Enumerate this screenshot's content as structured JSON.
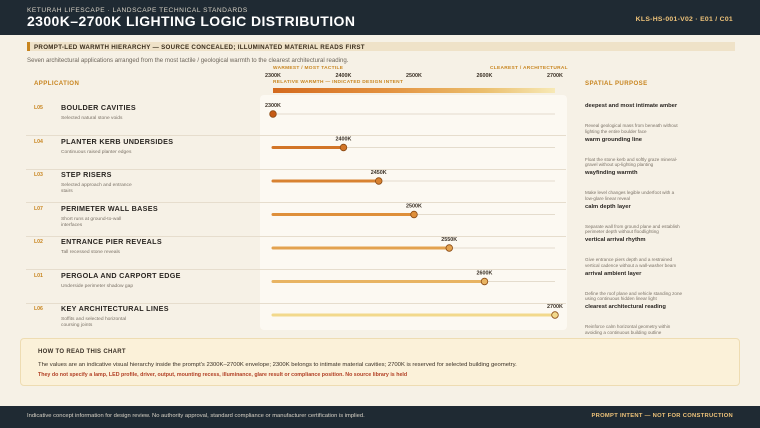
{
  "header": {
    "overline": "KETURAH LIFESCAPE  ·  LANDSCAPE TECHNICAL STANDARDS",
    "title": "2300K–2700K LIGHTING LOGIC DISTRIBUTION",
    "code": "KLS-HS-001-V02  ·  E01 / C01"
  },
  "band": {
    "text": "PROMPT-LED WARMTH HIERARCHY — SOURCE CONCEALED; ILLUMINATED MATERIAL READS FIRST"
  },
  "intro": "Seven architectural applications arranged from the most tactile / geological warmth to the clearest architectural reading.",
  "columns": {
    "application": "APPLICATION",
    "axis_label": "RELATIVE WARMTH — INDICATED DESIGN INTENT",
    "warm_end": "WARMEST / MOST TACTILE",
    "clear_end": "CLEAREST / ARCHITECTURAL",
    "purpose": "SPATIAL PURPOSE"
  },
  "chart_data": {
    "type": "scatter",
    "title": "2300K–2700K LIGHTING LOGIC DISTRIBUTION",
    "xlabel": "RELATIVE WARMTH — INDICATED DESIGN INTENT",
    "ylabel": "",
    "xlim": [
      2300,
      2700
    ],
    "x_ticks": [
      "2300K",
      "2400K",
      "2500K",
      "2600K",
      "2700K"
    ],
    "x_tick_values": [
      2300,
      2400,
      2500,
      2600,
      2700
    ],
    "grid": false,
    "rows": [
      {
        "code": "L05",
        "label": "BOULDER CAVITIES",
        "note": "Selected natural stone voids",
        "value": 2300,
        "value_label": "2300K",
        "purpose": "deepest and most intimate amber",
        "purpose_note": "Reveal geological mass from beneath without lighting the entire boulder face"
      },
      {
        "code": "L04",
        "label": "PLANTER KERB UNDERSIDES",
        "note": "Continuous raised planter edges",
        "value": 2400,
        "value_label": "2400K",
        "purpose": "warm grounding line",
        "purpose_note": "Float the stone kerb and softly graze mineral-gravel without up-lighting planting"
      },
      {
        "code": "L03",
        "label": "STEP RISERS",
        "note": "Selected approach and entrance stairs",
        "value": 2450,
        "value_label": "2450K",
        "purpose": "wayfinding warmth",
        "purpose_note": "Make level changes legible underfoot with a low-glare linear reveal"
      },
      {
        "code": "L07",
        "label": "PERIMETER WALL BASES",
        "note": "Short runs at ground-to-wall interfaces",
        "value": 2500,
        "value_label": "2500K",
        "purpose": "calm depth layer",
        "purpose_note": "Separate wall from ground plane and establish perimeter depth without floodlighting"
      },
      {
        "code": "L02",
        "label": "ENTRANCE PIER REVEALS",
        "note": "Tall recessed stone reveals",
        "value": 2550,
        "value_label": "2550K",
        "purpose": "vertical arrival rhythm",
        "purpose_note": "Give entrance piers depth and a restrained vertical cadence without a wall-washer beam"
      },
      {
        "code": "L01",
        "label": "PERGOLA AND CARPORT EDGE",
        "note": "Underside perimeter shadow gap",
        "value": 2600,
        "value_label": "2600K",
        "purpose": "arrival ambient layer",
        "purpose_note": "Define the roof plane and vehicle standing zone using continuous hidden linear light"
      },
      {
        "code": "L06",
        "label": "KEY ARCHITECTURAL LINES",
        "note": "Soffits and selected horizontal coursing joints",
        "value": 2700,
        "value_label": "2700K",
        "purpose": "clearest architectural reading",
        "purpose_note": "Reinforce calm horizontal geometry within avoiding a continuous building outline"
      }
    ],
    "colors": {
      "warm": "#c65a14",
      "mid": "#de8f3a",
      "clear": "#f2d98c",
      "accent": "#c8851f"
    }
  },
  "howto": {
    "heading": "HOW TO READ THIS CHART",
    "body": "The values are an indicative visual hierarchy inside the prompt's 2300K–2700K envelope; 2300K belongs to intimate material cavities; 2700K is reserved for selected building geometry.",
    "warning": "They do not specify a lamp, LED profile, driver, output, mounting recess, illuminance, glare result or compliance position. No source library is held"
  },
  "footer": {
    "left": "Indicative concept information for design review. No authority approval, standard compliance or manufacturer certification is implied.",
    "right": "PROMPT INTENT — NOT FOR CONSTRUCTION"
  }
}
